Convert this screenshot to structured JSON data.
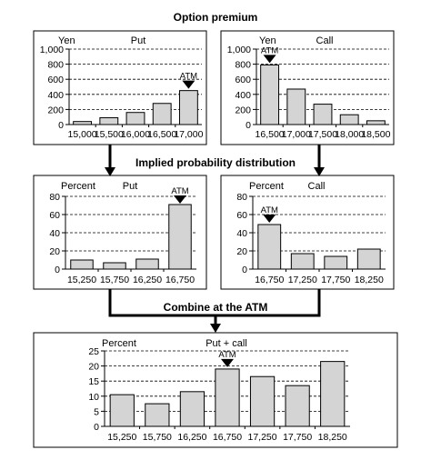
{
  "headings": {
    "premium": "Option premium",
    "implied": "Implied probability distribution",
    "combine": "Combine at the ATM"
  },
  "chart_data": [
    {
      "type": "bar",
      "unit": "Yen",
      "title": "Put",
      "categories": [
        "15,000",
        "15,500",
        "16,000",
        "16,500",
        "17,000"
      ],
      "values": [
        40,
        90,
        160,
        280,
        450
      ],
      "ylim": [
        0,
        1000
      ],
      "yticks": [
        "0",
        "200",
        "400",
        "600",
        "800",
        "1,000"
      ],
      "atm": {
        "label": "ATM",
        "category": "17,000"
      },
      "grid": true
    },
    {
      "type": "bar",
      "unit": "Yen",
      "title": "Call",
      "categories": [
        "16,500",
        "17,000",
        "17,500",
        "18,000",
        "18,500"
      ],
      "values": [
        790,
        470,
        270,
        130,
        50
      ],
      "ylim": [
        0,
        1000
      ],
      "yticks": [
        "0",
        "200",
        "400",
        "600",
        "800",
        "1,000"
      ],
      "atm": {
        "label": "ATM",
        "category": "16,500"
      },
      "grid": true
    },
    {
      "type": "bar",
      "unit": "Percent",
      "title": "Put",
      "categories": [
        "15,250",
        "15,750",
        "16,250",
        "16,750"
      ],
      "values": [
        10,
        7,
        11,
        71
      ],
      "ylim": [
        0,
        80
      ],
      "yticks": [
        "0",
        "20",
        "40",
        "60",
        "80"
      ],
      "atm": {
        "label": "ATM",
        "category": "16,750"
      },
      "grid": true
    },
    {
      "type": "bar",
      "unit": "Percent",
      "title": "Call",
      "categories": [
        "16,750",
        "17,250",
        "17,750",
        "18,250"
      ],
      "values": [
        49,
        17,
        14,
        22
      ],
      "ylim": [
        0,
        80
      ],
      "yticks": [
        "0",
        "20",
        "40",
        "60",
        "80"
      ],
      "atm": {
        "label": "ATM",
        "category": "16,750"
      },
      "grid": true
    },
    {
      "type": "bar",
      "unit": "Percent",
      "title": "Put + call",
      "categories": [
        "15,250",
        "15,750",
        "16,250",
        "16,750",
        "17,250",
        "17,750",
        "18,250"
      ],
      "values": [
        10.5,
        7.5,
        11.5,
        19,
        16.5,
        13.5,
        21.5
      ],
      "ylim": [
        0,
        25
      ],
      "yticks": [
        "0",
        "5",
        "10",
        "15",
        "20",
        "25"
      ],
      "atm": {
        "label": "ATM",
        "category": "16,750"
      },
      "grid": true
    }
  ]
}
